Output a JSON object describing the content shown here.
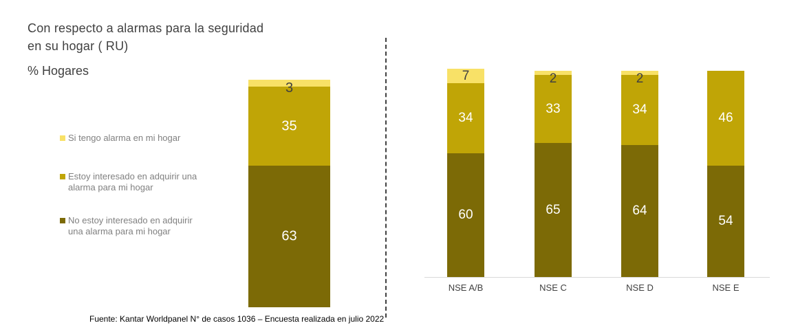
{
  "page": {
    "title_line1": "Con respecto a alarmas para la seguridad",
    "title_line2": "en su hogar ( RU)",
    "subtitle": "% Hogares",
    "footer": "Fuente: Kantar Worldpanel N° de casos 1036 – Encuesta realizada en julio 2022"
  },
  "legend": {
    "text_color": "#808080",
    "items": [
      {
        "label": "Si tengo alarma en mi hogar",
        "color": "#F8E167"
      },
      {
        "label": "Estoy interesado en adquirir una alarma para mi hogar",
        "color": "#C0A506"
      },
      {
        "label": "No estoy interesado en adquirir una alarma para mi hogar",
        "color": "#7C6A06"
      }
    ]
  },
  "colors": {
    "si_tengo": "#F8E167",
    "interesado": "#C0A506",
    "no_interesado": "#7C6A06",
    "dark_value_label": "#404040",
    "light_value_label": "#FFFFFF",
    "axis_line": "#D9D9D9",
    "divider": "#404040",
    "title_text": "#404040",
    "legend_text": "#808080",
    "footer_text": "#000000"
  },
  "chart_data": [
    {
      "type": "bar",
      "stacked": true,
      "title": "Con respecto a alarmas para la seguridad en su hogar ( RU)",
      "ylabel": "% Hogares",
      "categories": [
        ""
      ],
      "ylim": [
        0,
        101
      ],
      "grid": false,
      "legend_position": "left",
      "data_labels": true,
      "series": [
        {
          "name": "Si tengo alarma en mi hogar",
          "color": "#F8E167",
          "label_color": "#404040",
          "values": [
            3
          ]
        },
        {
          "name": "Estoy interesado en adquirir una alarma para mi hogar",
          "color": "#C0A506",
          "label_color": "#FFFFFF",
          "values": [
            35
          ]
        },
        {
          "name": "No estoy interesado en adquirir una alarma para mi hogar",
          "color": "#7C6A06",
          "label_color": "#FFFFFF",
          "values": [
            63
          ]
        }
      ]
    },
    {
      "type": "bar",
      "stacked": true,
      "title": "",
      "xlabel": "",
      "ylabel": "% Hogares",
      "categories": [
        "NSE A/B",
        "NSE C",
        "NSE D",
        "NSE E"
      ],
      "ylim": [
        0,
        101
      ],
      "grid": false,
      "data_labels": true,
      "series": [
        {
          "name": "Si tengo alarma en mi hogar",
          "color": "#F8E167",
          "label_color": "#404040",
          "values": [
            7,
            2,
            2,
            0
          ]
        },
        {
          "name": "Estoy interesado en adquirir una alarma para mi hogar",
          "color": "#C0A506",
          "label_color": "#FFFFFF",
          "values": [
            34,
            33,
            34,
            46
          ]
        },
        {
          "name": "No estoy interesado en adquirir una alarma para mi hogar",
          "color": "#7C6A06",
          "label_color": "#FFFFFF",
          "values": [
            60,
            65,
            64,
            54
          ]
        }
      ]
    }
  ]
}
